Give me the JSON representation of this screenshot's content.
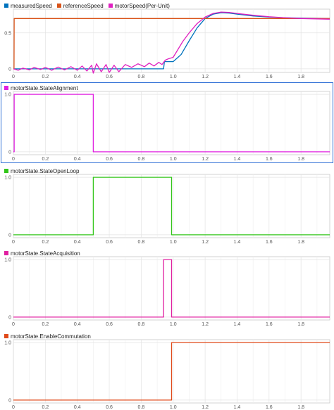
{
  "chart_data": [
    {
      "type": "line",
      "title": "",
      "xlim": [
        0,
        1.98
      ],
      "ylim": [
        -0.05,
        0.83
      ],
      "x_ticks": [
        "0",
        "0.2",
        "0.4",
        "0.6",
        "0.8",
        "1.0",
        "1.2",
        "1.4",
        "1.6",
        "1.8"
      ],
      "y_ticks": [
        "0",
        "0.5"
      ],
      "grid": true,
      "legend_position": "top-left",
      "series": [
        {
          "name": "measuredSpeed",
          "color": "#0072BD",
          "x": [
            0,
            0.005,
            0.94,
            0.945,
            0.99,
            1.0,
            1.05,
            1.1,
            1.15,
            1.2,
            1.25,
            1.3,
            1.35,
            1.4,
            1.5,
            1.6,
            1.7,
            1.8,
            1.98
          ],
          "y": [
            0,
            0,
            0,
            0.1,
            0.1,
            0.1,
            0.2,
            0.39,
            0.57,
            0.7,
            0.76,
            0.78,
            0.775,
            0.76,
            0.735,
            0.72,
            0.71,
            0.705,
            0.7
          ]
        },
        {
          "name": "referenceSpeed",
          "color": "#D95319",
          "x": [
            0,
            0.004,
            0.005,
            1.98
          ],
          "y": [
            0,
            0,
            0.7,
            0.7
          ]
        },
        {
          "name": "motorSpeed(Per-Unit)",
          "color": "#E020C0",
          "x": [
            0,
            0.03,
            0.06,
            0.1,
            0.13,
            0.17,
            0.2,
            0.24,
            0.28,
            0.32,
            0.36,
            0.4,
            0.43,
            0.46,
            0.49,
            0.5,
            0.52,
            0.55,
            0.58,
            0.6,
            0.63,
            0.66,
            0.7,
            0.74,
            0.78,
            0.82,
            0.85,
            0.88,
            0.91,
            0.93,
            0.95,
            0.97,
            1.0,
            1.03,
            1.06,
            1.1,
            1.15,
            1.2,
            1.25,
            1.3,
            1.35,
            1.4,
            1.5,
            1.6,
            1.7,
            1.8,
            1.98
          ],
          "y": [
            0,
            -0.02,
            0.01,
            -0.015,
            0.02,
            -0.01,
            0.02,
            -0.02,
            0.025,
            -0.015,
            0.03,
            -0.02,
            0.04,
            -0.03,
            0.05,
            -0.06,
            0.07,
            -0.04,
            0.06,
            -0.05,
            0.05,
            -0.04,
            0.06,
            0.02,
            0.07,
            0.03,
            0.08,
            0.04,
            0.09,
            0.06,
            0.12,
            0.14,
            0.16,
            0.27,
            0.38,
            0.5,
            0.63,
            0.72,
            0.77,
            0.79,
            0.785,
            0.77,
            0.745,
            0.725,
            0.71,
            0.7,
            0.69
          ]
        }
      ]
    },
    {
      "type": "line",
      "title": "",
      "xlim": [
        0,
        1.98
      ],
      "ylim": [
        -0.05,
        1.05
      ],
      "x_ticks": [
        "0",
        "0.2",
        "0.4",
        "0.6",
        "0.8",
        "1.0",
        "1.2",
        "1.4",
        "1.6",
        "1.8"
      ],
      "y_ticks": [
        "0",
        "1.0"
      ],
      "grid": true,
      "legend_position": "top-left",
      "series": [
        {
          "name": "motorState.StateAlignment",
          "color": "#E020E0",
          "x": [
            0,
            0.005,
            0.005,
            0.5,
            0.5,
            1.98
          ],
          "y": [
            0,
            0,
            1,
            1,
            0,
            0
          ]
        }
      ]
    },
    {
      "type": "line",
      "title": "",
      "xlim": [
        0,
        1.98
      ],
      "ylim": [
        -0.05,
        1.05
      ],
      "x_ticks": [
        "0",
        "0.2",
        "0.4",
        "0.6",
        "0.8",
        "1.0",
        "1.2",
        "1.4",
        "1.6",
        "1.8"
      ],
      "y_ticks": [
        "0",
        "1.0"
      ],
      "grid": true,
      "legend_position": "top-left",
      "series": [
        {
          "name": "motorState.StateOpenLoop",
          "color": "#33C61A",
          "x": [
            0,
            0.5,
            0.5,
            0.99,
            0.99,
            1.98
          ],
          "y": [
            0,
            0,
            1,
            1,
            0,
            0
          ]
        }
      ]
    },
    {
      "type": "line",
      "title": "",
      "xlim": [
        0,
        1.98
      ],
      "ylim": [
        -0.05,
        1.05
      ],
      "x_ticks": [
        "0",
        "0.2",
        "0.4",
        "0.6",
        "0.8",
        "1.0",
        "1.2",
        "1.4",
        "1.6",
        "1.8"
      ],
      "y_ticks": [
        "0",
        "1.0"
      ],
      "grid": true,
      "legend_position": "top-left",
      "series": [
        {
          "name": "motorState.StateAcquisition",
          "color": "#E020A0",
          "x": [
            0,
            0.94,
            0.94,
            0.99,
            0.99,
            1.98
          ],
          "y": [
            0,
            0,
            1,
            1,
            0,
            0
          ]
        }
      ]
    },
    {
      "type": "line",
      "title": "",
      "xlim": [
        0,
        1.98
      ],
      "ylim": [
        -0.05,
        1.05
      ],
      "x_ticks": [
        "0",
        "0.2",
        "0.4",
        "0.6",
        "0.8",
        "1.0",
        "1.2",
        "1.4",
        "1.6",
        "1.8"
      ],
      "y_ticks": [
        "0",
        "1.0"
      ],
      "grid": true,
      "legend_position": "top-left",
      "series": [
        {
          "name": "motorState.EnableCommutation",
          "color": "#E04A1A",
          "x": [
            0,
            0.99,
            0.99,
            1.98
          ],
          "y": [
            0,
            0,
            1,
            1
          ]
        }
      ]
    }
  ]
}
